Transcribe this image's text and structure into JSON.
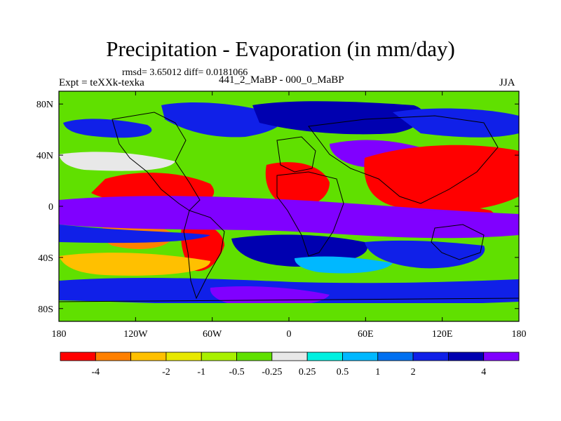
{
  "title": "Precipitation - Evaporation (in mm/day)",
  "stats_line": "rmsd= 3.65012 diff= 0.0181066",
  "left_label": "Expt = teXXk-texka",
  "center_label": "441_2_MaBP - 000_0_MaBP",
  "right_label": "JJA",
  "axes": {
    "x_ticks": [
      {
        "value": -180,
        "label": "180"
      },
      {
        "value": -120,
        "label": "120W"
      },
      {
        "value": -60,
        "label": "60W"
      },
      {
        "value": 0,
        "label": "0"
      },
      {
        "value": 60,
        "label": "60E"
      },
      {
        "value": 120,
        "label": "120E"
      },
      {
        "value": 180,
        "label": "180"
      }
    ],
    "y_ticks": [
      {
        "value": 80,
        "label": "80N"
      },
      {
        "value": 40,
        "label": "40N"
      },
      {
        "value": 0,
        "label": "0"
      },
      {
        "value": -40,
        "label": "40S"
      },
      {
        "value": -80,
        "label": "80S"
      }
    ],
    "lon_range": [
      -180,
      180
    ],
    "lat_range": [
      -90,
      90
    ]
  },
  "colorbar": {
    "colors": [
      "#ff0000",
      "#ff8000",
      "#ffc000",
      "#e8e800",
      "#a8f000",
      "#60e000",
      "#e8e8e8",
      "#00f0e0",
      "#00b8ff",
      "#0070f0",
      "#1020e8",
      "#0000b0",
      "#8000ff"
    ],
    "labels": [
      "-4",
      "-2",
      "-1",
      "-0.5",
      "-0.25",
      "0.25",
      "0.5",
      "1",
      "2",
      "4"
    ]
  }
}
